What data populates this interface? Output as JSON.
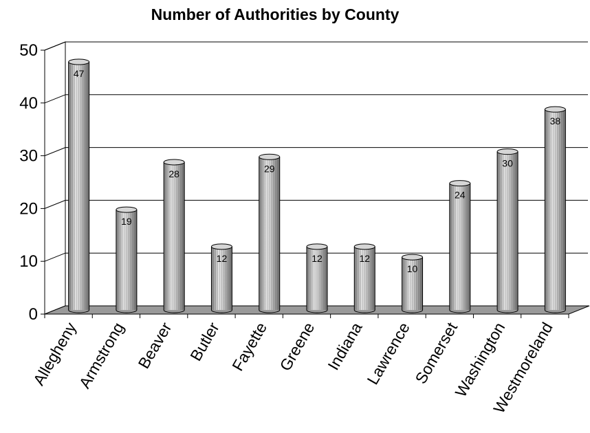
{
  "chart_data": {
    "type": "bar",
    "title": "Number of Authorities by County",
    "xlabel": "",
    "ylabel": "",
    "ylim": [
      0,
      50
    ],
    "yticks": [
      0,
      10,
      20,
      30,
      40,
      50
    ],
    "grid": true,
    "legend": "none",
    "bar_style": "3d-cylinder",
    "categories": [
      "Allegheny",
      "Armstrong",
      "Beaver",
      "Butler",
      "Fayette",
      "Greene",
      "Indiana",
      "Lawrence",
      "Somerset",
      "Washington",
      "Westmoreland"
    ],
    "values": [
      47,
      19,
      28,
      12,
      29,
      12,
      12,
      10,
      24,
      30,
      38
    ],
    "data_labels": [
      "47",
      "19",
      "28",
      "12",
      "29",
      "12",
      "12",
      "10",
      "24",
      "30",
      "38"
    ],
    "colors": {
      "bar_light": "#e8e8e8",
      "bar_mid": "#b8b8b8",
      "bar_dark": "#6e6e6e",
      "floor": "#9a9a9a",
      "grid": "#000000"
    }
  }
}
